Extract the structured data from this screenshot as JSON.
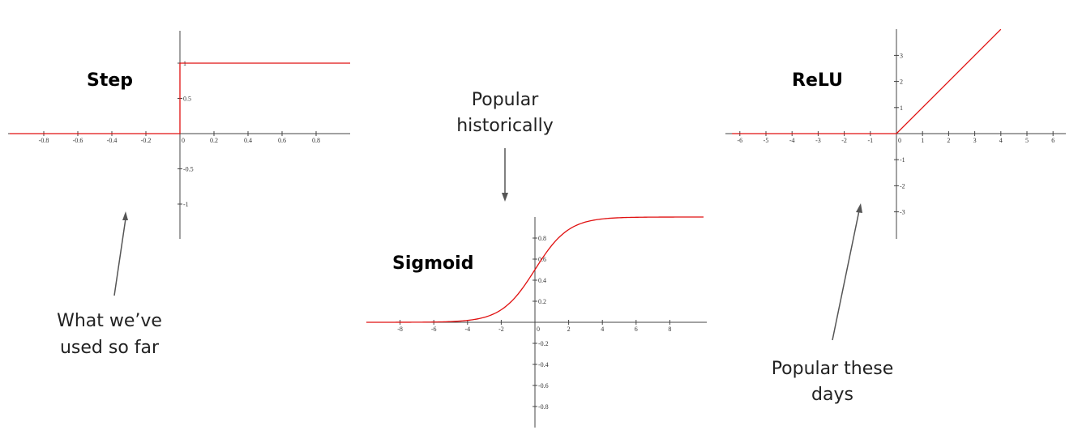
{
  "charts": {
    "step": {
      "title": "Step",
      "x_ticks": [
        "-0.8",
        "-0.6",
        "-0.4",
        "-0.2",
        "0",
        "0.2",
        "0.4",
        "0.6",
        "0.8"
      ],
      "y_ticks": [
        "1",
        "0.5",
        "0",
        "-0.5",
        "-1"
      ]
    },
    "sigmoid": {
      "title": "Sigmoid",
      "x_ticks": [
        "-8",
        "-6",
        "-4",
        "-2",
        "0",
        "2",
        "4",
        "6",
        "8"
      ],
      "y_ticks": [
        "0.8",
        "0.6",
        "0.4",
        "0.2",
        "0",
        "-0.2",
        "-0.4",
        "-0.6",
        "-0.8"
      ]
    },
    "relu": {
      "title": "ReLU",
      "x_ticks": [
        "-6",
        "-5",
        "-4",
        "-3",
        "-2",
        "-1",
        "0",
        "1",
        "2",
        "3",
        "4",
        "5",
        "6"
      ],
      "y_ticks": [
        "3",
        "2",
        "1",
        "0",
        "-1",
        "-2",
        "-3"
      ]
    }
  },
  "annotations": {
    "step_line1": "What we’ve",
    "step_line2": "used so far",
    "sigmoid_line1": "Popular",
    "sigmoid_line2": "historically",
    "relu_line1": "Popular these",
    "relu_line2": "days"
  },
  "chart_data": [
    {
      "type": "line",
      "title": "Step",
      "xlabel": "",
      "ylabel": "",
      "xlim": [
        -1,
        1
      ],
      "ylim": [
        -1.5,
        1.5
      ],
      "series": [
        {
          "x": [
            -1,
            0,
            0,
            1
          ],
          "y": [
            0,
            0,
            1,
            1
          ]
        }
      ],
      "color": "#e01010"
    },
    {
      "type": "line",
      "title": "Sigmoid",
      "xlabel": "",
      "ylabel": "",
      "xlim": [
        -10,
        10
      ],
      "ylim": [
        -1,
        1
      ],
      "series": [
        {
          "function": "sigmoid",
          "x_range": [
            -10,
            10
          ]
        }
      ],
      "color": "#e01010"
    },
    {
      "type": "line",
      "title": "ReLU",
      "xlabel": "",
      "ylabel": "",
      "xlim": [
        -6.3,
        6.3
      ],
      "ylim": [
        -4,
        4
      ],
      "series": [
        {
          "x": [
            -6.3,
            0,
            4
          ],
          "y": [
            0,
            0,
            4
          ]
        }
      ],
      "color": "#e01010"
    }
  ]
}
